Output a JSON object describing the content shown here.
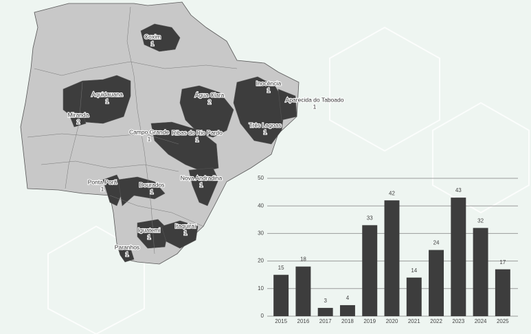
{
  "map": {
    "regions": [
      {
        "name": "Coxim",
        "count": 1
      },
      {
        "name": "Aquidauana",
        "count": 1
      },
      {
        "name": "Miranda",
        "count": 2
      },
      {
        "name": "Água Clara",
        "count": 2
      },
      {
        "name": "Inocência",
        "count": 1
      },
      {
        "name": "Aparecida do Taboado",
        "count": 1
      },
      {
        "name": "Três Lagoas",
        "count": 1
      },
      {
        "name": "Campo Grande",
        "count": 1
      },
      {
        "name": "Ribas do Rio Pardo",
        "count": 1
      },
      {
        "name": "Ponta Porã",
        "count": 1
      },
      {
        "name": "Dourados",
        "count": 1
      },
      {
        "name": "Nova Andradina",
        "count": 1
      },
      {
        "name": "Iguatemi",
        "count": 1
      },
      {
        "name": "Itaquiraí",
        "count": 1
      },
      {
        "name": "Paranhos",
        "count": 1
      }
    ]
  },
  "chart_data": {
    "type": "bar",
    "categories": [
      "2015",
      "2016",
      "2017",
      "2018",
      "2019",
      "2020",
      "2021",
      "2022",
      "2023",
      "2024",
      "2025"
    ],
    "values": [
      15,
      18,
      3,
      4,
      33,
      42,
      14,
      24,
      43,
      32,
      17
    ],
    "color": "#3d3d3d",
    "ylim": [
      0,
      50
    ],
    "yticks": [
      0,
      10,
      20,
      30,
      40,
      50
    ],
    "grid": true
  }
}
